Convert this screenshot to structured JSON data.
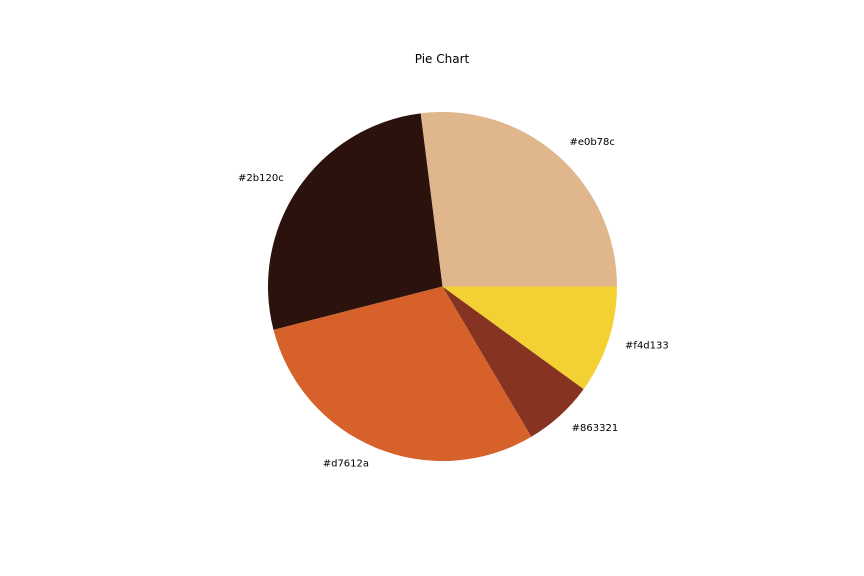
{
  "chart_data": {
    "type": "pie",
    "title": "Pie Chart",
    "start_angle_deg": 0,
    "direction": "counterclockwise",
    "slices": [
      {
        "label": "#e0b78c",
        "value": 27.0,
        "color": "#e0b78c"
      },
      {
        "label": "#2b120c",
        "value": 27.0,
        "color": "#2b120c"
      },
      {
        "label": "#d7612a",
        "value": 29.5,
        "color": "#d7612a"
      },
      {
        "label": "#863321",
        "value": 6.5,
        "color": "#863321"
      },
      {
        "label": "#f4d133",
        "value": 10.0,
        "color": "#f4d133"
      }
    ]
  }
}
